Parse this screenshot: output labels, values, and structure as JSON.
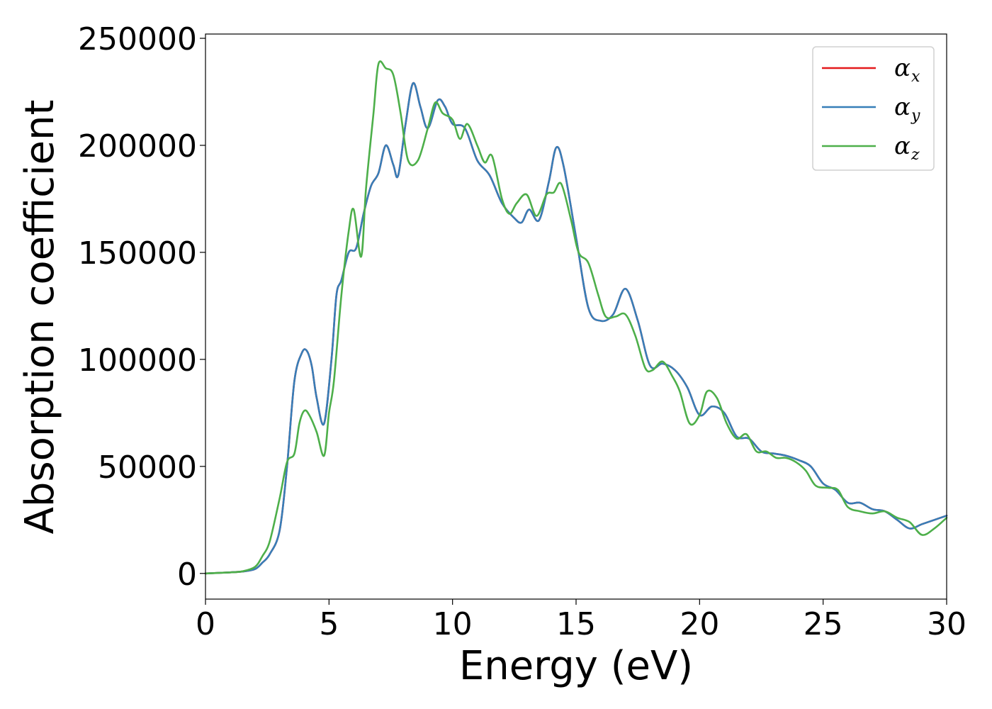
{
  "chart_data": {
    "type": "line",
    "title": "",
    "xlabel": "Energy (eV)",
    "ylabel": "Absorption coefficient",
    "xlim": [
      0,
      30
    ],
    "ylim": [
      -12000,
      252000
    ],
    "xticks": [
      0,
      5,
      10,
      15,
      20,
      25,
      30
    ],
    "yticks": [
      0,
      50000,
      100000,
      150000,
      200000,
      250000
    ],
    "grid": false,
    "legend_position": "top-right",
    "series": [
      {
        "name": "α_x",
        "legend_main": "α",
        "legend_sub": "x",
        "color": "#e41a1c",
        "x": [
          0,
          1,
          1.5,
          2,
          2.3,
          2.6,
          3,
          3.3,
          3.6,
          3.9,
          4.1,
          4.3,
          4.5,
          4.8,
          5.1,
          5.3,
          5.5,
          5.8,
          6.1,
          6.4,
          6.7,
          7.0,
          7.3,
          7.6,
          7.8,
          8.1,
          8.4,
          8.7,
          9.0,
          9.4,
          9.7,
          10.0,
          10.5,
          11.0,
          11.5,
          12.0,
          12.5,
          12.8,
          13.1,
          13.5,
          13.9,
          14.2,
          14.5,
          15.0,
          15.5,
          16.0,
          16.5,
          17.0,
          17.5,
          18.0,
          18.5,
          19.0,
          19.5,
          20.0,
          20.5,
          21.0,
          21.5,
          22.0,
          22.5,
          23.0,
          23.5,
          24.0,
          24.5,
          25.0,
          25.5,
          26.0,
          26.5,
          27.0,
          27.5,
          28.0,
          28.5,
          29.0,
          29.5,
          30.0
        ],
        "y": [
          0,
          500,
          900,
          2000,
          5000,
          9000,
          20000,
          50000,
          90000,
          103000,
          104000,
          97000,
          82000,
          70000,
          100000,
          130000,
          137000,
          150000,
          152000,
          168000,
          181000,
          187000,
          200000,
          191000,
          186000,
          210000,
          229000,
          218000,
          208000,
          221000,
          218000,
          210000,
          208000,
          193000,
          186000,
          173000,
          166000,
          164000,
          170000,
          165000,
          183000,
          199000,
          190000,
          157000,
          124000,
          118000,
          121000,
          133000,
          118000,
          97000,
          98000,
          95000,
          87000,
          74000,
          78000,
          75000,
          64000,
          63000,
          57000,
          56000,
          55000,
          53000,
          50000,
          42000,
          39000,
          33000,
          33000,
          30000,
          29000,
          25000,
          21000,
          23000,
          25000,
          27000
        ]
      },
      {
        "name": "α_y",
        "legend_main": "α",
        "legend_sub": "y",
        "color": "#377eb8",
        "x": [
          0,
          1,
          1.5,
          2,
          2.3,
          2.6,
          3,
          3.3,
          3.6,
          3.9,
          4.1,
          4.3,
          4.5,
          4.8,
          5.1,
          5.3,
          5.5,
          5.8,
          6.1,
          6.4,
          6.7,
          7.0,
          7.3,
          7.6,
          7.8,
          8.1,
          8.4,
          8.7,
          9.0,
          9.4,
          9.7,
          10.0,
          10.5,
          11.0,
          11.5,
          12.0,
          12.5,
          12.8,
          13.1,
          13.5,
          13.9,
          14.2,
          14.5,
          15.0,
          15.5,
          16.0,
          16.5,
          17.0,
          17.5,
          18.0,
          18.5,
          19.0,
          19.5,
          20.0,
          20.5,
          21.0,
          21.5,
          22.0,
          22.5,
          23.0,
          23.5,
          24.0,
          24.5,
          25.0,
          25.5,
          26.0,
          26.5,
          27.0,
          27.5,
          28.0,
          28.5,
          29.0,
          29.5,
          30.0
        ],
        "y": [
          0,
          500,
          900,
          2000,
          5000,
          9000,
          20000,
          50000,
          90000,
          103000,
          104000,
          97000,
          82000,
          70000,
          100000,
          130000,
          137000,
          150000,
          152000,
          168000,
          181000,
          187000,
          200000,
          191000,
          186000,
          210000,
          229000,
          218000,
          208000,
          221000,
          218000,
          210000,
          208000,
          193000,
          186000,
          173000,
          166000,
          164000,
          170000,
          165000,
          183000,
          199000,
          190000,
          157000,
          124000,
          118000,
          121000,
          133000,
          118000,
          97000,
          98000,
          95000,
          87000,
          74000,
          78000,
          75000,
          64000,
          63000,
          57000,
          56000,
          55000,
          53000,
          50000,
          42000,
          39000,
          33000,
          33000,
          30000,
          29000,
          25000,
          21000,
          23000,
          25000,
          27000
        ]
      },
      {
        "name": "α_z",
        "legend_main": "α",
        "legend_sub": "z",
        "color": "#4daf4a",
        "x": [
          0,
          1,
          1.5,
          2,
          2.3,
          2.6,
          3,
          3.3,
          3.6,
          3.8,
          4.0,
          4.2,
          4.5,
          4.8,
          5.0,
          5.2,
          5.5,
          5.8,
          6.0,
          6.3,
          6.5,
          6.8,
          7.0,
          7.3,
          7.6,
          7.9,
          8.2,
          8.6,
          9.0,
          9.3,
          9.6,
          10.0,
          10.3,
          10.6,
          11.0,
          11.3,
          11.6,
          12.0,
          12.3,
          12.6,
          13.0,
          13.4,
          13.8,
          14.1,
          14.4,
          14.8,
          15.1,
          15.5,
          15.9,
          16.2,
          16.6,
          17.0,
          17.4,
          17.8,
          18.1,
          18.5,
          18.9,
          19.2,
          19.6,
          20.0,
          20.3,
          20.7,
          21.1,
          21.5,
          21.9,
          22.3,
          22.7,
          23.1,
          23.5,
          23.9,
          24.3,
          24.7,
          25.2,
          25.6,
          26.0,
          26.5,
          27.0,
          27.5,
          28.0,
          28.5,
          29.0,
          29.5,
          30.0
        ],
        "y": [
          0,
          500,
          1000,
          3000,
          8000,
          15000,
          35000,
          52000,
          56000,
          70000,
          76000,
          74000,
          66000,
          55000,
          75000,
          90000,
          130000,
          160000,
          170000,
          148000,
          180000,
          215000,
          238000,
          236000,
          233000,
          215000,
          193000,
          193000,
          208000,
          220000,
          215000,
          212000,
          203000,
          210000,
          200000,
          192000,
          195000,
          175000,
          168000,
          173000,
          177000,
          167000,
          177000,
          178000,
          182000,
          165000,
          150000,
          145000,
          130000,
          120000,
          120000,
          121000,
          111000,
          96000,
          95000,
          99000,
          92000,
          85000,
          70000,
          74000,
          85000,
          82000,
          70000,
          63000,
          65000,
          57000,
          57000,
          54000,
          54000,
          52000,
          48000,
          41000,
          40000,
          39000,
          31000,
          29000,
          28000,
          29000,
          26000,
          24000,
          18000,
          21000,
          26000
        ]
      }
    ]
  }
}
